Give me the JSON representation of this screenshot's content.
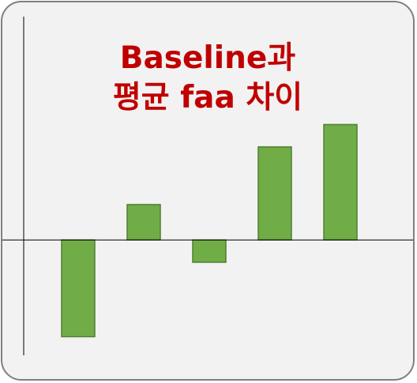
{
  "chart_data": {
    "type": "bar",
    "title_lines": [
      "Baseline과",
      "평균 faa 차이"
    ],
    "xlabel": "",
    "ylabel": "",
    "categories": [
      "",
      "",
      "",
      "",
      ""
    ],
    "values": [
      -2.6,
      0.95,
      -0.6,
      2.5,
      3.1
    ],
    "ylim": [
      -3.1,
      6.0
    ],
    "grid": false,
    "legend": "none",
    "colors": {
      "bar_fill": "#70ad47",
      "bar_stroke": "#507e32",
      "axis": "#000000",
      "title": "#c00000",
      "background": "#f2f2f2",
      "border": "#7f7f7f"
    }
  }
}
